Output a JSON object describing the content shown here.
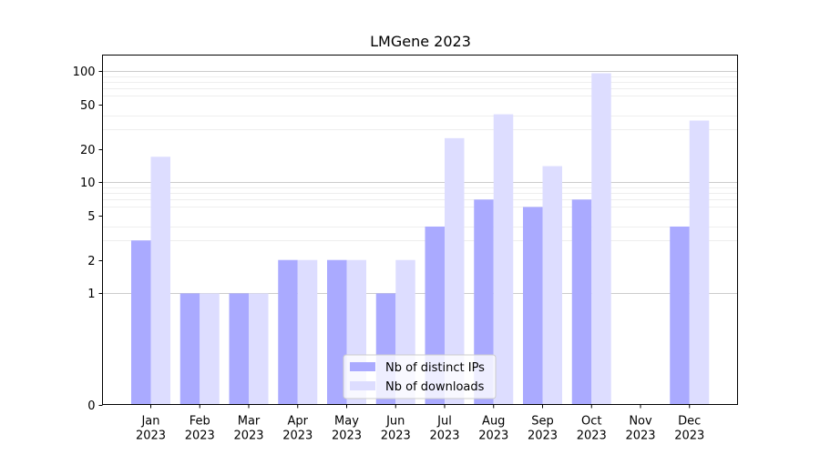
{
  "chart_data": {
    "type": "bar",
    "title": "LMGene 2023",
    "xlabel": "",
    "ylabel": "",
    "scale": "symlog",
    "ylim": [
      0,
      140
    ],
    "y_ticks": [
      {
        "value": 0,
        "label": "0"
      },
      {
        "value": 1,
        "label": "1"
      },
      {
        "value": 2,
        "label": "2"
      },
      {
        "value": 5,
        "label": "5"
      },
      {
        "value": 10,
        "label": "10"
      },
      {
        "value": 20,
        "label": "20"
      },
      {
        "value": 50,
        "label": "50"
      },
      {
        "value": 100,
        "label": "100"
      }
    ],
    "categories": [
      {
        "month": "Jan",
        "year": "2023"
      },
      {
        "month": "Feb",
        "year": "2023"
      },
      {
        "month": "Mar",
        "year": "2023"
      },
      {
        "month": "Apr",
        "year": "2023"
      },
      {
        "month": "May",
        "year": "2023"
      },
      {
        "month": "Jun",
        "year": "2023"
      },
      {
        "month": "Jul",
        "year": "2023"
      },
      {
        "month": "Aug",
        "year": "2023"
      },
      {
        "month": "Sep",
        "year": "2023"
      },
      {
        "month": "Oct",
        "year": "2023"
      },
      {
        "month": "Nov",
        "year": "2023"
      },
      {
        "month": "Dec",
        "year": "2023"
      }
    ],
    "series": [
      {
        "name": "Nb of distinct IPs",
        "color": "#aaaaff",
        "values": [
          3,
          1,
          1,
          2,
          2,
          1,
          4,
          7,
          6,
          7,
          0,
          4
        ]
      },
      {
        "name": "Nb of downloads",
        "color": "#ddddff",
        "values": [
          17,
          1,
          1,
          2,
          2,
          2,
          25,
          41,
          14,
          96,
          0,
          36
        ]
      }
    ],
    "grid": true,
    "legend_position": "lower-center"
  }
}
